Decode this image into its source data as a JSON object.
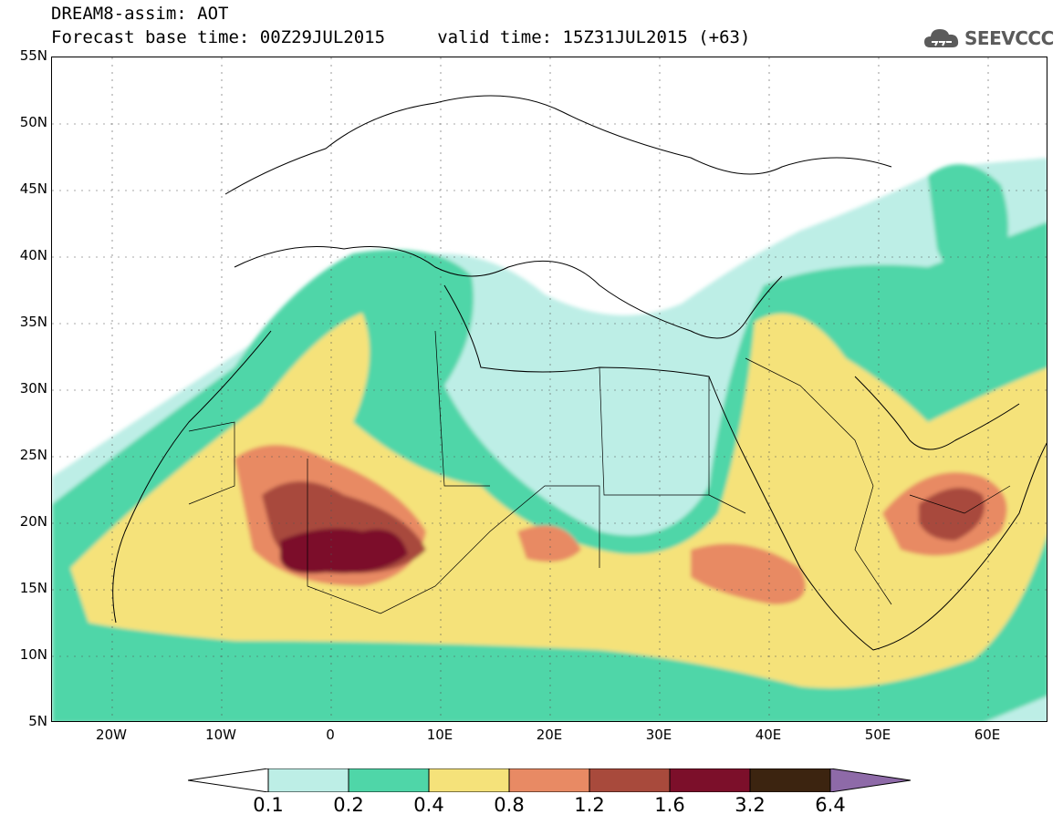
{
  "header": {
    "title_line1": "DREAM8-assim: AOT",
    "title_line2": "Forecast base time: 00Z29JUL2015     valid time: 15Z31JUL2015 (+63)"
  },
  "logo": {
    "text": "SEEVCCC",
    "icon": "cloud-icon"
  },
  "map": {
    "lat_labels": [
      "55N",
      "50N",
      "45N",
      "40N",
      "35N",
      "30N",
      "25N",
      "20N",
      "15N",
      "10N",
      "5N"
    ],
    "lon_labels": [
      "20W",
      "10W",
      "0",
      "10E",
      "20E",
      "30E",
      "40E",
      "50E",
      "60E"
    ]
  },
  "colorbar": {
    "labels": [
      "0.1",
      "0.2",
      "0.4",
      "0.8",
      "1.2",
      "1.6",
      "3.2",
      "6.4"
    ],
    "colors": [
      "#ffffff",
      "#bdeee6",
      "#4fd6a8",
      "#f5e27a",
      "#e88a64",
      "#a84a3c",
      "#7c0f2a",
      "#3c2410",
      "#8e6aa8"
    ]
  }
}
